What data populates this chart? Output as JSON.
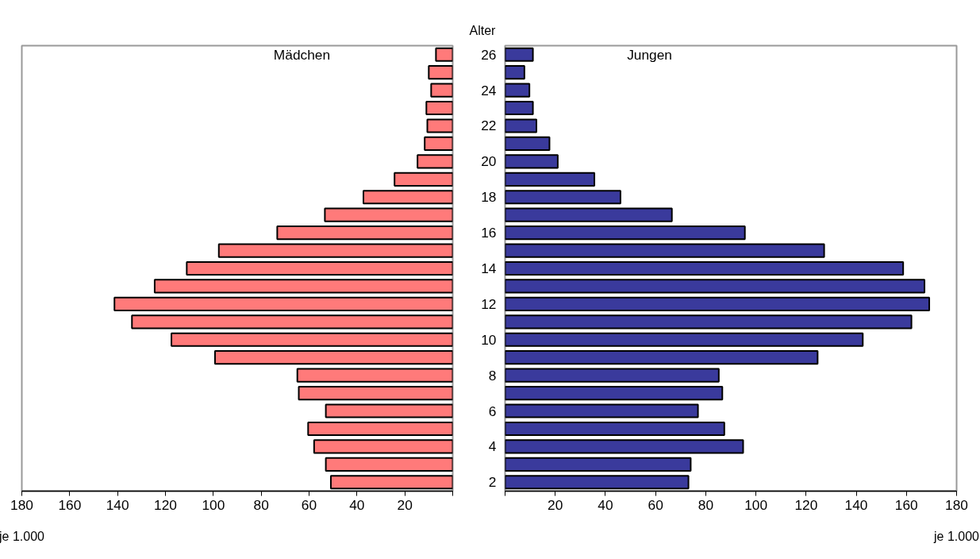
{
  "chart_data": [
    {
      "type": "bar",
      "orientation": "horizontal",
      "xlabel": "je 1.000",
      "categories": [
        "26",
        null,
        "24",
        null,
        "22",
        null,
        "20",
        null,
        "18",
        null,
        "16",
        null,
        "14",
        null,
        "12",
        null,
        "10",
        null,
        "8",
        null,
        "6",
        null,
        "4",
        null,
        "2"
      ],
      "series": [
        {
          "name": "Mädchen",
          "color": "#ff7a7a",
          "values": [
            7,
            10,
            9,
            11,
            10.6,
            11.7,
            14.7,
            24.3,
            37.3,
            53.4,
            73.3,
            97.7,
            111.1,
            124.5,
            141.3,
            134,
            117.5,
            99.3,
            64.9,
            64.3,
            53,
            60.4,
            57.9,
            53,
            50.9
          ]
        }
      ],
      "xlim": [
        180,
        0
      ],
      "xticks": [
        180,
        160,
        140,
        120,
        100,
        80,
        60,
        40,
        20,
        {
          "value": 0,
          "label": null
        }
      ],
      "tick_labels": "x",
      "grid": false,
      "legend": false
    },
    {
      "type": "bar",
      "orientation": "horizontal",
      "xlabel": "je 1.000",
      "ylabel": "Alter",
      "categories": [
        "26",
        null,
        "24",
        null,
        "22",
        null,
        "20",
        null,
        "18",
        null,
        "16",
        null,
        "14",
        null,
        "12",
        null,
        "10",
        null,
        "8",
        null,
        "6",
        null,
        "4",
        null,
        "2"
      ],
      "series": [
        {
          "name": "Jungen",
          "color": "#3a3a9c",
          "values": [
            11.1,
            7.7,
            9.7,
            11.1,
            12.5,
            17.7,
            21,
            35.6,
            46,
            66.5,
            95.6,
            127.2,
            158.7,
            167.2,
            169.1,
            162,
            142.6,
            124.6,
            85.2,
            86.6,
            76.9,
            87.4,
            94.9,
            74,
            73.1
          ]
        }
      ],
      "xlim": [
        0,
        180
      ],
      "xticks": [
        {
          "value": 0,
          "label": null
        },
        20,
        40,
        60,
        80,
        100,
        120,
        140,
        160,
        180
      ],
      "grid": false,
      "legend": false
    }
  ]
}
